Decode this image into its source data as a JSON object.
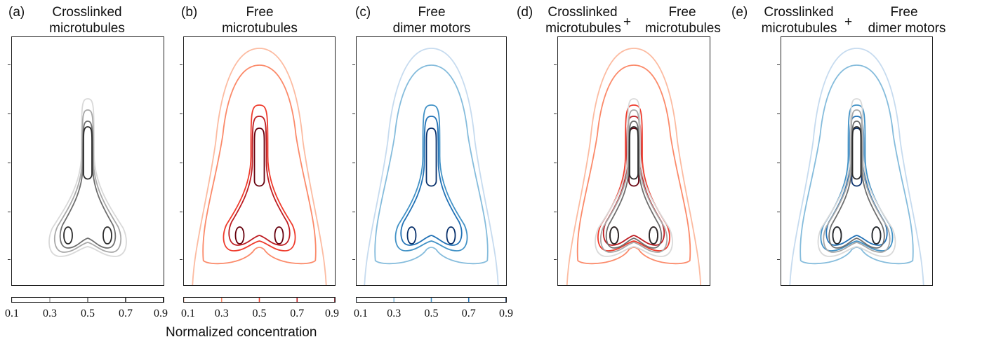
{
  "panels": [
    {
      "label": "(a)",
      "title_line1": "Crosslinked",
      "title_line2": "microtubules",
      "palette": "grey"
    },
    {
      "label": "(b)",
      "title_line1": "Free",
      "title_line2": "microtubules",
      "palette": "red"
    },
    {
      "label": "(c)",
      "title_line1": "Free",
      "title_line2": "dimer motors",
      "palette": "blue"
    },
    {
      "label": "(d)",
      "title_line1": "Crosslinked",
      "title_line2": "microtubules",
      "title_line1b": "Free",
      "title_line2b": "microtubules",
      "plus": "+",
      "palette": "grey+red"
    },
    {
      "label": "(e)",
      "title_line1": "Crosslinked",
      "title_line2": "microtubules",
      "title_line1b": "Free",
      "title_line2b": "dimer motors",
      "plus": "+",
      "palette": "grey+blue"
    }
  ],
  "colorbar": {
    "ticks": [
      "0.1",
      "0.3",
      "0.5",
      "0.7",
      "0.9"
    ],
    "label": "Normalized concentration"
  },
  "colors": {
    "grey": [
      "#d9d9d9",
      "#a8a8a8",
      "#6e6e6e",
      "#2b2b2b",
      "#000000"
    ],
    "red": [
      "#fcbba1",
      "#fb8a6a",
      "#ef3b2c",
      "#bd1d22",
      "#67000d"
    ],
    "blue": [
      "#c6dbef",
      "#85bcdc",
      "#4292c6",
      "#2171b5",
      "#08306b"
    ]
  },
  "chart_data": {
    "type": "contour",
    "xlabel": "Normalized concentration",
    "colorbar_range": [
      0.1,
      0.9
    ],
    "colorbar_ticks": [
      0.1,
      0.3,
      0.5,
      0.7,
      0.9
    ],
    "contour_levels": [
      0.1,
      0.3,
      0.5,
      0.7,
      0.9
    ],
    "series": [
      {
        "name": "Crosslinked microtubules",
        "levels": [
          0.3,
          0.5,
          0.7,
          0.9
        ]
      },
      {
        "name": "Free microtubules",
        "levels": [
          0.1,
          0.3,
          0.5,
          0.7,
          0.9
        ]
      },
      {
        "name": "Free dimer motors",
        "levels": [
          0.1,
          0.3,
          0.5,
          0.7,
          0.9
        ]
      }
    ]
  }
}
